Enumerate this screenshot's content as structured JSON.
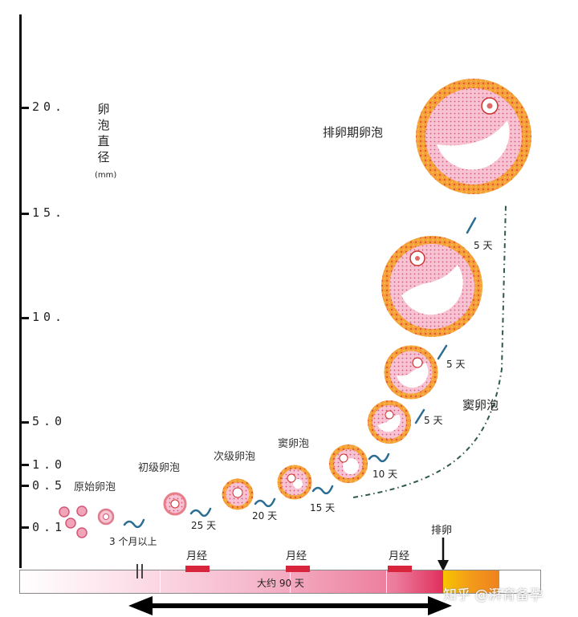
{
  "axis": {
    "label": "卵泡直径",
    "unit": "(mm)",
    "ticks": [
      "20.",
      "15.",
      "10.",
      "5.0",
      "1.0",
      "0.5",
      "0.1"
    ]
  },
  "stages": {
    "primordial": "原始卵泡",
    "primary": "初级卵泡",
    "secondary": "次级卵泡",
    "antral_small": "窦卵泡",
    "antral_large": "窦卵泡",
    "ovulatory": "排卵期卵泡"
  },
  "durations": {
    "d0": "3 个月以上",
    "d1": "25 天",
    "d2": "20 天",
    "d3": "15 天",
    "d4": "10 天",
    "d5": "5 天",
    "d6": "5 天",
    "d7": "5 天"
  },
  "timeline": {
    "period_label": "月经",
    "ovulation_label": "排卵",
    "duration_label": "大约 90 天"
  },
  "watermark": "知乎 @湃育备孕",
  "colors": {
    "follicle_ring": "#f08a2a",
    "follicle_inner": "#f7c2d2",
    "arrow": "#2c6e92",
    "period": "#d9253b"
  }
}
